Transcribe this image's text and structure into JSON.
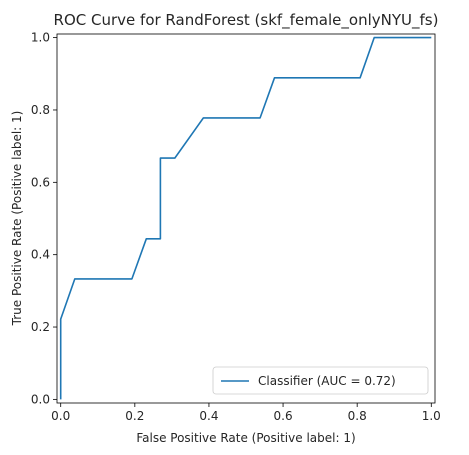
{
  "chart_data": {
    "type": "line",
    "title": "ROC Curve for RandForest (skf_female_onlyNYU_fs)",
    "xlabel": "False Positive Rate (Positive label: 1)",
    "ylabel": "True Positive Rate (Positive label: 1)",
    "xlim": [
      -0.01,
      1.01
    ],
    "ylim": [
      -0.01,
      1.01
    ],
    "xticks": [
      0.0,
      0.2,
      0.4,
      0.6,
      0.8,
      1.0
    ],
    "yticks": [
      0.0,
      0.2,
      0.4,
      0.6,
      0.8,
      1.0
    ],
    "xtick_labels": [
      "0.0",
      "0.2",
      "0.4",
      "0.6",
      "0.8",
      "1.0"
    ],
    "ytick_labels": [
      "0.0",
      "0.2",
      "0.4",
      "0.6",
      "0.8",
      "1.0"
    ],
    "grid": false,
    "legend_position": "lower-right",
    "series": [
      {
        "name": "Classifier (AUC = 0.72)",
        "color": "#1f77b4",
        "x": [
          0.0,
          0.0,
          0.0,
          0.038,
          0.192,
          0.231,
          0.269,
          0.269,
          0.308,
          0.385,
          0.538,
          0.577,
          0.808,
          0.846,
          1.0
        ],
        "y": [
          0.0,
          0.222,
          0.222,
          0.333,
          0.333,
          0.444,
          0.444,
          0.667,
          0.667,
          0.778,
          0.778,
          0.889,
          0.889,
          1.0,
          1.0
        ]
      }
    ]
  }
}
